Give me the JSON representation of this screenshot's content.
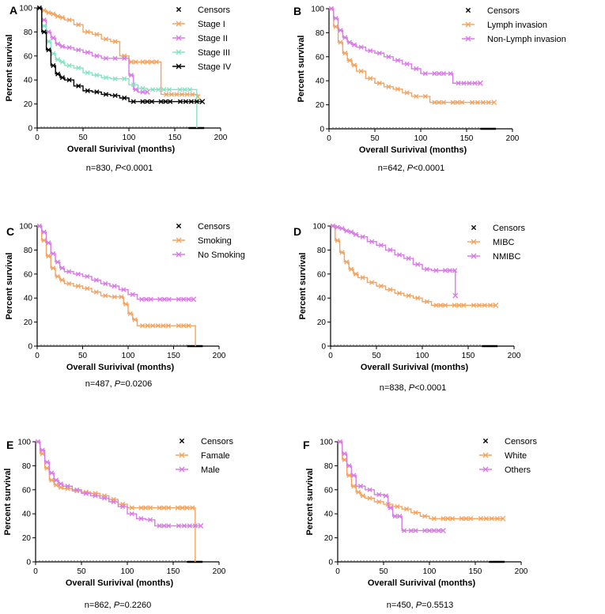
{
  "figure_label": "Kaplan-Meier survival curves, six panels",
  "colors": {
    "orange": "#f4a460",
    "violet": "#d97be6",
    "aqua": "#86e3c6",
    "black": "#000000",
    "grey": "#aaaaaa"
  },
  "chart_data": [
    {
      "type": "line",
      "panel": "A",
      "title": "",
      "xlabel": "Overall Surivival (months)",
      "ylabel": "Percent survival",
      "xlim": [
        0,
        200
      ],
      "ylim": [
        0,
        100
      ],
      "xticks": [
        "0",
        "50",
        "100",
        "150",
        "200"
      ],
      "yticks": [
        "0",
        "20",
        "40",
        "60",
        "80",
        "100"
      ],
      "legend_header": "Censors",
      "footnote": {
        "prefix": "n=830, ",
        "p_letter": "P",
        "p_value": "<0.0001"
      },
      "series": [
        {
          "name": "Stage I",
          "color": "#f4a460",
          "x": [
            0,
            5,
            10,
            15,
            20,
            25,
            30,
            40,
            50,
            60,
            70,
            80,
            90,
            100,
            105,
            110,
            135,
            175
          ],
          "y": [
            100,
            98,
            96,
            95,
            93,
            92,
            90,
            86,
            80,
            78,
            74,
            72,
            60,
            55,
            55,
            55,
            28,
            26
          ]
        },
        {
          "name": "Stage II",
          "color": "#d97be6",
          "x": [
            0,
            5,
            10,
            15,
            20,
            25,
            30,
            40,
            50,
            60,
            70,
            80,
            90,
            100,
            105,
            110,
            120
          ],
          "y": [
            100,
            90,
            80,
            75,
            70,
            68,
            67,
            65,
            63,
            60,
            58,
            58,
            58,
            44,
            32,
            30,
            30
          ]
        },
        {
          "name": "Stage III",
          "color": "#86e3c6",
          "x": [
            0,
            5,
            10,
            15,
            20,
            25,
            30,
            40,
            50,
            60,
            70,
            80,
            90,
            100,
            110,
            120,
            150,
            172,
            174
          ],
          "y": [
            100,
            85,
            72,
            62,
            57,
            55,
            52,
            50,
            46,
            44,
            42,
            41,
            41,
            36,
            33,
            32,
            32,
            32,
            0
          ]
        },
        {
          "name": "Stage IV",
          "color": "#000000",
          "x": [
            0,
            5,
            10,
            15,
            20,
            25,
            30,
            40,
            50,
            60,
            70,
            80,
            90,
            100,
            110,
            130,
            150,
            180
          ],
          "y": [
            100,
            80,
            65,
            52,
            45,
            42,
            40,
            35,
            31,
            30,
            28,
            27,
            25,
            22,
            22,
            22,
            22,
            22
          ]
        }
      ]
    },
    {
      "type": "line",
      "panel": "B",
      "title": "",
      "xlabel": "Overall Surivival (months)",
      "ylabel": "Percent survival",
      "xlim": [
        0,
        200
      ],
      "ylim": [
        0,
        100
      ],
      "xticks": [
        "0",
        "50",
        "100",
        "150",
        "200"
      ],
      "yticks": [
        "0",
        "20",
        "40",
        "60",
        "80",
        "100"
      ],
      "legend_header": "Censors",
      "footnote": {
        "prefix": "n=642, ",
        "p_letter": "P",
        "p_value": "<0.0001"
      },
      "series": [
        {
          "name": "Lymph invasion",
          "color": "#f4a460",
          "x": [
            0,
            5,
            10,
            15,
            20,
            25,
            30,
            40,
            50,
            60,
            70,
            80,
            90,
            100,
            110,
            130,
            150,
            180
          ],
          "y": [
            100,
            85,
            72,
            63,
            57,
            53,
            48,
            42,
            38,
            35,
            33,
            30,
            27,
            27,
            22,
            22,
            22,
            22
          ]
        },
        {
          "name": "Non-Lymph invasion",
          "color": "#d97be6",
          "x": [
            0,
            5,
            10,
            15,
            20,
            25,
            30,
            40,
            50,
            60,
            70,
            80,
            90,
            100,
            110,
            130,
            135,
            165
          ],
          "y": [
            100,
            92,
            82,
            76,
            72,
            70,
            68,
            65,
            63,
            60,
            57,
            54,
            50,
            46,
            46,
            46,
            38,
            38
          ]
        }
      ]
    },
    {
      "type": "line",
      "panel": "C",
      "title": "",
      "xlabel": "Overall Surivival (months)",
      "ylabel": "Percent survival",
      "xlim": [
        0,
        200
      ],
      "ylim": [
        0,
        100
      ],
      "xticks": [
        "0",
        "50",
        "100",
        "150",
        "200"
      ],
      "yticks": [
        "0",
        "20",
        "40",
        "60",
        "80",
        "100"
      ],
      "legend_header": "Censors",
      "footnote": {
        "prefix": "n=487, ",
        "p_letter": "P",
        "p_value": "=0.0206"
      },
      "series": [
        {
          "name": "Smoking",
          "color": "#f4a460",
          "x": [
            0,
            5,
            10,
            15,
            20,
            25,
            30,
            40,
            50,
            60,
            70,
            80,
            90,
            95,
            100,
            105,
            110,
            150,
            172,
            174
          ],
          "y": [
            100,
            88,
            75,
            65,
            58,
            55,
            52,
            50,
            48,
            45,
            42,
            41,
            41,
            35,
            27,
            22,
            17,
            17,
            17,
            0
          ]
        },
        {
          "name": "No Smoking",
          "color": "#d97be6",
          "x": [
            0,
            5,
            10,
            15,
            20,
            25,
            30,
            40,
            50,
            60,
            70,
            80,
            90,
            100,
            110,
            130,
            150,
            172
          ],
          "y": [
            100,
            95,
            86,
            77,
            70,
            65,
            62,
            60,
            58,
            55,
            52,
            50,
            47,
            43,
            39,
            39,
            39,
            39
          ]
        }
      ]
    },
    {
      "type": "line",
      "panel": "D",
      "title": "",
      "xlabel": "Overall Surivival (months)",
      "ylabel": "Percent survival",
      "xlim": [
        0,
        200
      ],
      "ylim": [
        0,
        100
      ],
      "xticks": [
        "0",
        "50",
        "100",
        "150",
        "200"
      ],
      "yticks": [
        "0",
        "20",
        "40",
        "60",
        "80",
        "100"
      ],
      "legend_header": "Censors",
      "footnote": {
        "prefix": "n=838, ",
        "p_letter": "P",
        "p_value": "<0.0001"
      },
      "series": [
        {
          "name": "MIBC",
          "color": "#f4a460",
          "x": [
            0,
            5,
            10,
            15,
            20,
            25,
            30,
            40,
            50,
            60,
            70,
            80,
            90,
            100,
            110,
            130,
            150,
            180
          ],
          "y": [
            100,
            88,
            78,
            70,
            64,
            60,
            57,
            53,
            50,
            47,
            44,
            42,
            40,
            37,
            34,
            34,
            34,
            34
          ]
        },
        {
          "name": "NMIBC",
          "color": "#d97be6",
          "x": [
            0,
            5,
            10,
            15,
            20,
            25,
            30,
            40,
            50,
            60,
            70,
            80,
            90,
            100,
            110,
            120,
            135,
            136
          ],
          "y": [
            100,
            99,
            98,
            96,
            95,
            93,
            91,
            87,
            84,
            80,
            76,
            73,
            68,
            64,
            63,
            63,
            63,
            42
          ]
        }
      ]
    },
    {
      "type": "line",
      "panel": "E",
      "title": "",
      "xlabel": "Overall Surivival (months)",
      "ylabel": "Percent survival",
      "xlim": [
        0,
        200
      ],
      "ylim": [
        0,
        100
      ],
      "xticks": [
        "0",
        "50",
        "100",
        "150",
        "200"
      ],
      "yticks": [
        "0",
        "20",
        "40",
        "60",
        "80",
        "100"
      ],
      "legend_header": "Censors",
      "footnote": {
        "prefix": "n=862, ",
        "p_letter": "P",
        "p_value": "=0.2260"
      },
      "series": [
        {
          "name": "Famale",
          "color": "#f4a460",
          "x": [
            0,
            5,
            10,
            15,
            20,
            25,
            30,
            40,
            50,
            60,
            70,
            80,
            90,
            100,
            110,
            130,
            150,
            170,
            172,
            174
          ],
          "y": [
            100,
            90,
            78,
            68,
            64,
            62,
            61,
            59,
            58,
            57,
            55,
            52,
            48,
            45,
            45,
            45,
            45,
            45,
            45,
            0
          ]
        },
        {
          "name": "Male",
          "color": "#d97be6",
          "x": [
            0,
            5,
            10,
            15,
            20,
            25,
            30,
            40,
            50,
            60,
            70,
            80,
            90,
            100,
            110,
            120,
            130,
            150,
            180
          ],
          "y": [
            100,
            93,
            83,
            74,
            68,
            65,
            63,
            60,
            57,
            55,
            53,
            50,
            46,
            40,
            36,
            35,
            30,
            30,
            30
          ]
        }
      ]
    },
    {
      "type": "line",
      "panel": "F",
      "title": "",
      "xlabel": "Overall Surivival (months)",
      "ylabel": "Percent survival",
      "xlim": [
        0,
        200
      ],
      "ylim": [
        0,
        100
      ],
      "xticks": [
        "0",
        "50",
        "100",
        "150",
        "200"
      ],
      "yticks": [
        "0",
        "20",
        "40",
        "60",
        "80",
        "100"
      ],
      "legend_header": "Censors",
      "footnote": {
        "prefix": "n=450, ",
        "p_letter": "P",
        "p_value": "=0.5513"
      },
      "series": [
        {
          "name": "White",
          "color": "#f4a460",
          "x": [
            0,
            5,
            10,
            15,
            20,
            25,
            30,
            40,
            50,
            60,
            70,
            80,
            90,
            100,
            110,
            130,
            150,
            180
          ],
          "y": [
            100,
            85,
            72,
            63,
            58,
            55,
            53,
            50,
            48,
            46,
            44,
            41,
            38,
            36,
            36,
            36,
            36,
            36
          ]
        },
        {
          "name": "Others",
          "color": "#d97be6",
          "x": [
            0,
            5,
            10,
            15,
            20,
            30,
            40,
            50,
            55,
            60,
            65,
            70,
            75,
            90,
            115
          ],
          "y": [
            100,
            90,
            80,
            72,
            63,
            60,
            56,
            55,
            45,
            38,
            38,
            26,
            26,
            26,
            26
          ]
        }
      ]
    }
  ]
}
